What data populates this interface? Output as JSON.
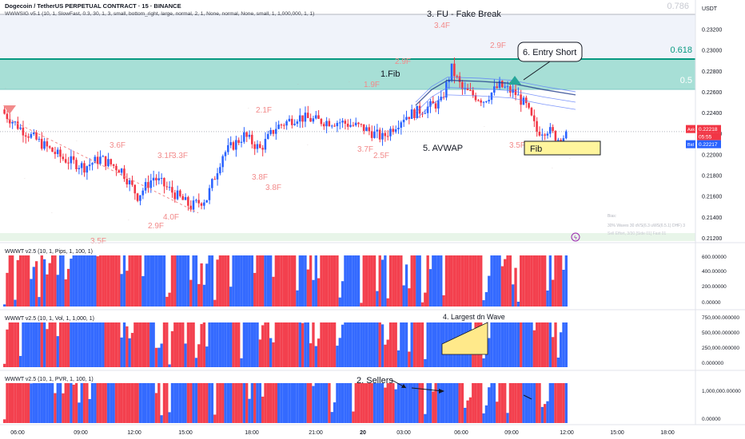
{
  "header": {
    "symbol_line": "Dogecoin / TetherUS PERPETUAL CONTRACT · 15 · BINANCE",
    "indicator_line": "WWWSIG v5.1 (10, 1, SlowFast, 0.3, 30, 1, 3, small, bottom_right, large, normal, 2, 1, None, normal, None, small, 1, 1,000,000, 1, 1)"
  },
  "price_axis": {
    "currency": "USDT",
    "ticks": [
      "0.23200",
      "0.23000",
      "0.22800",
      "0.22600",
      "0.22400",
      "0.22200",
      "0.22000",
      "0.21800",
      "0.21600",
      "0.21400",
      "0.21200"
    ],
    "ask_label": "Ask",
    "ask_value": "0.22218",
    "timer": "05:55",
    "bid_label": "Bid",
    "bid_value": "0.22217"
  },
  "fib_labels": {
    "f786": "0.786",
    "f618": "0.618",
    "f5": "0.5"
  },
  "annotations": {
    "fake_break": "3. FU - Fake Break",
    "fib1": "1.Fib",
    "entry_short": "6. Entry Short",
    "avwap": "5. AVWAP",
    "fib_box": "Fib",
    "largest_wave": "4. Largest dn Wave",
    "sellers": "2. Sellers"
  },
  "wave_labels": [
    {
      "t": "3.4F",
      "c": "#f28a8a"
    },
    {
      "t": "2.9F",
      "c": "#f28a8a"
    },
    {
      "t": "2.9F",
      "c": "#f28a8a"
    },
    {
      "t": "1.9F",
      "c": "#f28a8a"
    },
    {
      "t": "2.1F",
      "c": "#f28a8a"
    },
    {
      "t": "3.6F",
      "c": "#f28a8a"
    },
    {
      "t": "3.1F",
      "c": "#f28a8a"
    },
    {
      "t": "3.3F",
      "c": "#f28a8a"
    },
    {
      "t": "4.0F",
      "c": "#f28a8a"
    },
    {
      "t": "2.9F",
      "c": "#f28a8a"
    },
    {
      "t": "3.8F",
      "c": "#f28a8a"
    },
    {
      "t": "3.8F",
      "c": "#f28a8a"
    },
    {
      "t": "3.7F",
      "c": "#f28a8a"
    },
    {
      "t": "2.5F",
      "c": "#f28a8a"
    },
    {
      "t": "3.5F",
      "c": "#f28a8a"
    },
    {
      "t": "3.5F",
      "c": "#f28a8a"
    }
  ],
  "info_box": {
    "title": "Bias:",
    "line1": "30% Waves 30 dVS(6.3 uWS(6.5.1) DHF)  3",
    "line2": "Sell Effort, 3/30 [Side 01] Fast 01"
  },
  "panes": [
    {
      "title": "WWWT v2.5 (10, 1, Pips, 1, 100, 1)",
      "ticks": [
        "600.00000",
        "400.00000",
        "200.00000",
        "0.00000"
      ]
    },
    {
      "title": "WWWT v2.5 (10, 1, Vol, 1, 1,000, 1)",
      "ticks": [
        "750,000.000000",
        "500,000.000000",
        "250,000.000000",
        "0.000000"
      ]
    },
    {
      "title": "WWWT v2.5 (10, 1, PVR, 1, 100, 1)",
      "ticks": [
        "1,000,000.00000",
        "0.00000"
      ]
    }
  ],
  "time_axis": [
    "06:00",
    "09:00",
    "12:00",
    "15:00",
    "18:00",
    "21:00",
    "20",
    "03:00",
    "06:00",
    "09:00",
    "12:00",
    "15:00",
    "18:00"
  ],
  "colors": {
    "up": "#2962ff",
    "down": "#f23645",
    "zone": "#26a69a",
    "fib_line": "#089981",
    "box": "#fff59d",
    "wave_fill": "#ffe98a"
  }
}
